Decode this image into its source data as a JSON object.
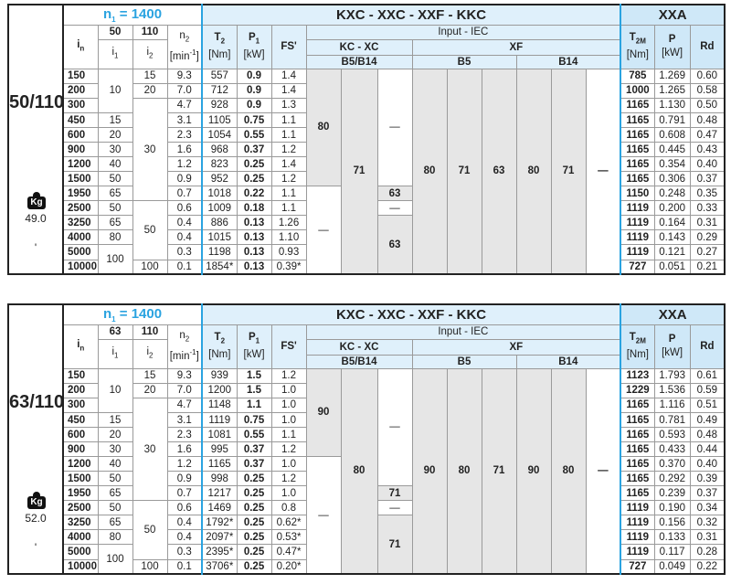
{
  "headers": {
    "n1_base": "n",
    "n1_sub": "1",
    "n1_value": " = 1400",
    "series_title": "KXC - XXC - XXF - KKC",
    "xxa_title": "XXA",
    "in_base": "i",
    "in_sub": "n",
    "i1_base": "i",
    "i1_sub": "1",
    "i2_base": "i",
    "i2_sub": "2",
    "n2_base": "n",
    "n2_sub": "2",
    "n2_unit_pre": "[min",
    "n2_unit_sup": "-1",
    "n2_unit_post": "]",
    "t2_base": "T",
    "t2_sub": "2",
    "t2_unit": "[Nm]",
    "p1_base": "P",
    "p1_sub": "1",
    "p1_unit": "[kW]",
    "fs": "FS'",
    "input": "Input  -  IEC",
    "kc_xc": "KC - XC",
    "xf": "XF",
    "b5b14": "B5/B14",
    "b5": "B5",
    "b14": "B14",
    "t2m_base": "T",
    "t2m_sub": "2M",
    "t2m_unit": "[Nm]",
    "p_label": "P",
    "p_unit": "[kW]",
    "rd": "Rd",
    "kg_icon_text": "Kg"
  },
  "colors": {
    "accent_blue": "#2aa3e0",
    "header_bg": "#dff0fb",
    "shade": "#e6e6e6"
  },
  "tables": [
    {
      "model": "50/110",
      "weight": "49.0",
      "weight_note": "'",
      "i1_header": "50",
      "i2_header": "110",
      "rows": [
        {
          "in": "150",
          "n2": "9.3",
          "t2": "557",
          "p1": "0.9",
          "fs": "1.4",
          "t2m": "785",
          "p": "1.269",
          "rd": "0.60"
        },
        {
          "in": "200",
          "n2": "7.0",
          "t2": "712",
          "p1": "0.9",
          "fs": "1.4",
          "t2m": "1000",
          "p": "1.265",
          "rd": "0.58"
        },
        {
          "in": "300",
          "n2": "4.7",
          "t2": "928",
          "p1": "0.9",
          "fs": "1.3",
          "t2m": "1165",
          "p": "1.130",
          "rd": "0.50"
        },
        {
          "in": "450",
          "n2": "3.1",
          "t2": "1105",
          "p1": "0.75",
          "fs": "1.1",
          "t2m": "1165",
          "p": "0.791",
          "rd": "0.48"
        },
        {
          "in": "600",
          "n2": "2.3",
          "t2": "1054",
          "p1": "0.55",
          "fs": "1.1",
          "t2m": "1165",
          "p": "0.608",
          "rd": "0.47"
        },
        {
          "in": "900",
          "n2": "1.6",
          "t2": "968",
          "p1": "0.37",
          "fs": "1.2",
          "t2m": "1165",
          "p": "0.445",
          "rd": "0.43"
        },
        {
          "in": "1200",
          "n2": "1.2",
          "t2": "823",
          "p1": "0.25",
          "fs": "1.4",
          "t2m": "1165",
          "p": "0.354",
          "rd": "0.40"
        },
        {
          "in": "1500",
          "n2": "0.9",
          "t2": "952",
          "p1": "0.25",
          "fs": "1.2",
          "t2m": "1165",
          "p": "0.306",
          "rd": "0.37"
        },
        {
          "in": "1950",
          "n2": "0.7",
          "t2": "1018",
          "p1": "0.22",
          "fs": "1.1",
          "t2m": "1150",
          "p": "0.248",
          "rd": "0.35"
        },
        {
          "in": "2500",
          "n2": "0.6",
          "t2": "1009",
          "p1": "0.18",
          "fs": "1.1",
          "t2m": "1119",
          "p": "0.200",
          "rd": "0.33"
        },
        {
          "in": "3250",
          "n2": "0.4",
          "t2": "886",
          "p1": "0.13",
          "fs": "1.26",
          "t2m": "1119",
          "p": "0.164",
          "rd": "0.31"
        },
        {
          "in": "4000",
          "n2": "0.4",
          "t2": "1015",
          "p1": "0.13",
          "fs": "1.10",
          "t2m": "1119",
          "p": "0.143",
          "rd": "0.29"
        },
        {
          "in": "5000",
          "n2": "0.3",
          "t2": "1198",
          "p1": "0.13",
          "fs": "0.93",
          "t2m": "1119",
          "p": "0.121",
          "rd": "0.27"
        },
        {
          "in": "10000",
          "n2": "0.1",
          "t2": "1854*",
          "p1": "0.13",
          "fs": "0.39*",
          "t2m": "727",
          "p": "0.051",
          "rd": "0.21"
        }
      ],
      "i1_groups": [
        {
          "v": "10",
          "span": 3
        },
        {
          "v": "15",
          "span": 1
        },
        {
          "v": "20",
          "span": 1
        },
        {
          "v": "30",
          "span": 1
        },
        {
          "v": "40",
          "span": 1
        },
        {
          "v": "50",
          "span": 1
        },
        {
          "v": "65",
          "span": 1
        },
        {
          "v": "50",
          "span": 1
        },
        {
          "v": "65",
          "span": 1
        },
        {
          "v": "80",
          "span": 1
        },
        {
          "v": "100",
          "span": 2
        }
      ],
      "i2_groups": [
        {
          "v": "15",
          "span": 1
        },
        {
          "v": "20",
          "span": 1
        },
        {
          "v": "30",
          "span": 7
        },
        {
          "v": "50",
          "span": 4
        },
        {
          "v": "100",
          "span": 1
        }
      ],
      "kc_columns": [
        [
          {
            "v": "80",
            "span": 8,
            "shaded": true
          },
          {
            "v": "—",
            "span": 6,
            "shaded": false
          }
        ],
        [
          {
            "v": "71",
            "span": 14,
            "shaded": true
          }
        ],
        [
          {
            "v": "—",
            "span": 8,
            "shaded": false
          },
          {
            "v": "63",
            "span": 1,
            "shaded": true
          },
          {
            "v": "—",
            "span": 1,
            "shaded": false
          },
          {
            "v": "63",
            "span": 4,
            "shaded": true
          }
        ]
      ],
      "xf_columns": [
        {
          "v": "80",
          "shaded": true
        },
        {
          "v": "71",
          "shaded": true
        },
        {
          "v": "63",
          "shaded": true
        },
        {
          "v": "80",
          "shaded": true
        },
        {
          "v": "71",
          "shaded": true
        },
        {
          "v": "—",
          "shaded": false
        }
      ]
    },
    {
      "model": "63/110",
      "weight": "52.0",
      "weight_note": "'",
      "i1_header": "63",
      "i2_header": "110",
      "rows": [
        {
          "in": "150",
          "n2": "9.3",
          "t2": "939",
          "p1": "1.5",
          "fs": "1.2",
          "t2m": "1123",
          "p": "1.793",
          "rd": "0.61"
        },
        {
          "in": "200",
          "n2": "7.0",
          "t2": "1200",
          "p1": "1.5",
          "fs": "1.0",
          "t2m": "1229",
          "p": "1.536",
          "rd": "0.59"
        },
        {
          "in": "300",
          "n2": "4.7",
          "t2": "1148",
          "p1": "1.1",
          "fs": "1.0",
          "t2m": "1165",
          "p": "1.116",
          "rd": "0.51"
        },
        {
          "in": "450",
          "n2": "3.1",
          "t2": "1119",
          "p1": "0.75",
          "fs": "1.0",
          "t2m": "1165",
          "p": "0.781",
          "rd": "0.49"
        },
        {
          "in": "600",
          "n2": "2.3",
          "t2": "1081",
          "p1": "0.55",
          "fs": "1.1",
          "t2m": "1165",
          "p": "0.593",
          "rd": "0.48"
        },
        {
          "in": "900",
          "n2": "1.6",
          "t2": "995",
          "p1": "0.37",
          "fs": "1.2",
          "t2m": "1165",
          "p": "0.433",
          "rd": "0.44"
        },
        {
          "in": "1200",
          "n2": "1.2",
          "t2": "1165",
          "p1": "0.37",
          "fs": "1.0",
          "t2m": "1165",
          "p": "0.370",
          "rd": "0.40"
        },
        {
          "in": "1500",
          "n2": "0.9",
          "t2": "998",
          "p1": "0.25",
          "fs": "1.2",
          "t2m": "1165",
          "p": "0.292",
          "rd": "0.39"
        },
        {
          "in": "1950",
          "n2": "0.7",
          "t2": "1217",
          "p1": "0.25",
          "fs": "1.0",
          "t2m": "1165",
          "p": "0.239",
          "rd": "0.37"
        },
        {
          "in": "2500",
          "n2": "0.6",
          "t2": "1469",
          "p1": "0.25",
          "fs": "0.8",
          "t2m": "1119",
          "p": "0.190",
          "rd": "0.34"
        },
        {
          "in": "3250",
          "n2": "0.4",
          "t2": "1792*",
          "p1": "0.25",
          "fs": "0.62*",
          "t2m": "1119",
          "p": "0.156",
          "rd": "0.32"
        },
        {
          "in": "4000",
          "n2": "0.4",
          "t2": "2097*",
          "p1": "0.25",
          "fs": "0.53*",
          "t2m": "1119",
          "p": "0.133",
          "rd": "0.31"
        },
        {
          "in": "5000",
          "n2": "0.3",
          "t2": "2395*",
          "p1": "0.25",
          "fs": "0.47*",
          "t2m": "1119",
          "p": "0.117",
          "rd": "0.28"
        },
        {
          "in": "10000",
          "n2": "0.1",
          "t2": "3706*",
          "p1": "0.25",
          "fs": "0.20*",
          "t2m": "727",
          "p": "0.049",
          "rd": "0.22"
        }
      ],
      "i1_groups": [
        {
          "v": "10",
          "span": 3
        },
        {
          "v": "15",
          "span": 1
        },
        {
          "v": "20",
          "span": 1
        },
        {
          "v": "30",
          "span": 1
        },
        {
          "v": "40",
          "span": 1
        },
        {
          "v": "50",
          "span": 1
        },
        {
          "v": "65",
          "span": 1
        },
        {
          "v": "50",
          "span": 1
        },
        {
          "v": "65",
          "span": 1
        },
        {
          "v": "80",
          "span": 1
        },
        {
          "v": "100",
          "span": 2
        }
      ],
      "i2_groups": [
        {
          "v": "15",
          "span": 1
        },
        {
          "v": "20",
          "span": 1
        },
        {
          "v": "30",
          "span": 7
        },
        {
          "v": "50",
          "span": 4
        },
        {
          "v": "100",
          "span": 1
        }
      ],
      "kc_columns": [
        [
          {
            "v": "90",
            "span": 6,
            "shaded": true
          },
          {
            "v": "—",
            "span": 8,
            "shaded": false
          }
        ],
        [
          {
            "v": "80",
            "span": 14,
            "shaded": true
          }
        ],
        [
          {
            "v": "—",
            "span": 8,
            "shaded": false
          },
          {
            "v": "71",
            "span": 1,
            "shaded": true
          },
          {
            "v": "—",
            "span": 1,
            "shaded": false
          },
          {
            "v": "71",
            "span": 4,
            "shaded": true
          }
        ]
      ],
      "xf_columns": [
        {
          "v": "90",
          "shaded": true
        },
        {
          "v": "80",
          "shaded": true
        },
        {
          "v": "71",
          "shaded": true
        },
        {
          "v": "90",
          "shaded": true
        },
        {
          "v": "80",
          "shaded": true
        },
        {
          "v": "—",
          "shaded": false
        }
      ]
    }
  ]
}
